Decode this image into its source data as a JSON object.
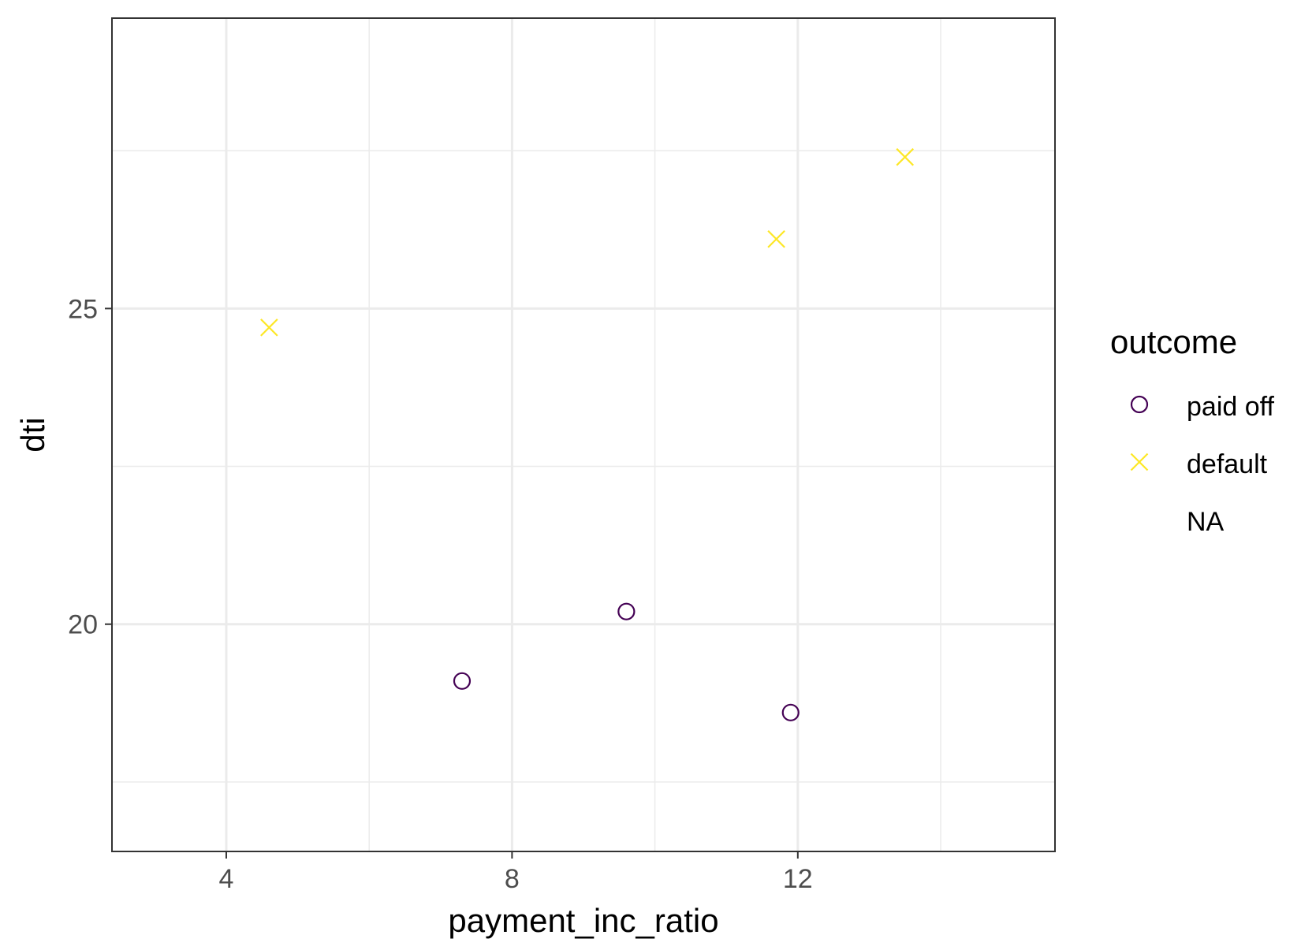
{
  "chart_data": {
    "type": "scatter",
    "title": "",
    "xlabel": "payment_inc_ratio",
    "ylabel": "dti",
    "xlim": [
      2.4,
      15.6
    ],
    "ylim": [
      16.4,
      29.6
    ],
    "x_ticks": [
      4,
      8,
      12
    ],
    "x_minor_ticks": [
      6,
      10,
      14
    ],
    "y_ticks": [
      20,
      25
    ],
    "y_minor_ticks": [
      17.5,
      22.5,
      27.5
    ],
    "grid": true,
    "legend_position": "right",
    "legend": {
      "title": "outcome",
      "entries": [
        {
          "label": "paid off",
          "shape": "circle",
          "color": "#440154"
        },
        {
          "label": "default",
          "shape": "cross",
          "color": "#FDE725"
        },
        {
          "label": "NA",
          "shape": "none",
          "color": ""
        }
      ]
    },
    "series": [
      {
        "name": "paid off",
        "shape": "circle",
        "color": "#440154",
        "points": [
          {
            "x": 7.3,
            "y": 19.1
          },
          {
            "x": 9.6,
            "y": 20.2
          },
          {
            "x": 11.9,
            "y": 18.6
          }
        ]
      },
      {
        "name": "default",
        "shape": "cross",
        "color": "#FDE725",
        "points": [
          {
            "x": 4.6,
            "y": 24.7
          },
          {
            "x": 11.7,
            "y": 26.1
          },
          {
            "x": 13.5,
            "y": 27.4
          }
        ]
      }
    ]
  }
}
